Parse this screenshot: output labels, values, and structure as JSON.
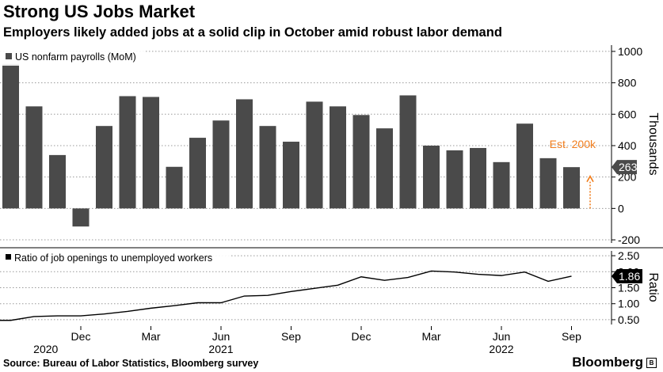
{
  "header": {
    "title": "Strong US Jobs Market",
    "subtitle": "Employers likely added jobs at a solid clip in October amid robust labor demand"
  },
  "footer": {
    "source": "Source: Bureau of Labor Statistics, Bloomberg survey",
    "brand": "Bloomberg",
    "brand_mark": "B"
  },
  "colors": {
    "bar": "#4a4a4a",
    "estimate": "#f07d1d",
    "gridline": "#999999",
    "badge": "#4a4a4a"
  },
  "chart_data": [
    {
      "type": "bar",
      "title": "US nonfarm payrolls (MoM)",
      "legend": "US nonfarm payrolls (MoM)",
      "ylabel": "Thousands",
      "ylim": [
        -220,
        1040
      ],
      "yticks": [
        -200,
        0,
        200,
        400,
        600,
        800,
        1000
      ],
      "categories": [
        "Sep 2020",
        "Oct 2020",
        "Nov 2020",
        "Dec 2020",
        "Jan 2021",
        "Feb 2021",
        "Mar 2021",
        "Apr 2021",
        "May 2021",
        "Jun 2021",
        "Jul 2021",
        "Aug 2021",
        "Sep 2021",
        "Oct 2021",
        "Nov 2021",
        "Dec 2021",
        "Jan 2022",
        "Feb 2022",
        "Mar 2022",
        "Apr 2022",
        "May 2022",
        "Jun 2022",
        "Jul 2022",
        "Aug 2022",
        "Sep 2022"
      ],
      "values": [
        920,
        650,
        340,
        -115,
        525,
        715,
        710,
        265,
        450,
        560,
        695,
        525,
        425,
        680,
        650,
        595,
        510,
        720,
        400,
        370,
        385,
        295,
        540,
        320,
        263
      ],
      "last_value_label": "263",
      "estimate": {
        "label": "Est. 200k",
        "value": 200
      }
    },
    {
      "type": "line",
      "title": "Ratio of job openings to unemployed workers",
      "legend": "Ratio of job openings to unemployed workers",
      "ylabel": "Ratio",
      "ylim": [
        0.35,
        2.65
      ],
      "yticks": [
        0.5,
        1.0,
        1.5,
        2.0,
        2.5
      ],
      "ytick_labels": [
        "0.50",
        "1.00",
        "1.50",
        "2.00",
        "2.50"
      ],
      "x": [
        "Sep 2020",
        "Oct 2020",
        "Nov 2020",
        "Dec 2020",
        "Jan 2021",
        "Feb 2021",
        "Mar 2021",
        "Apr 2021",
        "May 2021",
        "Jun 2021",
        "Jul 2021",
        "Aug 2021",
        "Sep 2021",
        "Oct 2021",
        "Nov 2021",
        "Dec 2021",
        "Jan 2022",
        "Feb 2022",
        "Mar 2022",
        "Apr 2022",
        "May 2022",
        "Jun 2022",
        "Jul 2022",
        "Aug 2022",
        "Sep 2022"
      ],
      "values": [
        0.48,
        0.6,
        0.62,
        0.62,
        0.68,
        0.76,
        0.86,
        0.94,
        1.03,
        1.03,
        1.24,
        1.26,
        1.38,
        1.48,
        1.58,
        1.84,
        1.73,
        1.82,
        2.02,
        1.99,
        1.92,
        1.88,
        1.99,
        1.7,
        1.86
      ],
      "last_value_label": "1.86"
    }
  ],
  "x_axis": {
    "tick_labels": [
      {
        "label": "Dec",
        "index": 3
      },
      {
        "label": "Mar",
        "index": 6
      },
      {
        "label": "Jun",
        "index": 9
      },
      {
        "label": "Sep",
        "index": 12
      },
      {
        "label": "Dec",
        "index": 15
      },
      {
        "label": "Mar",
        "index": 18
      },
      {
        "label": "Jun",
        "index": 21
      },
      {
        "label": "Sep",
        "index": 24
      }
    ],
    "year_labels": [
      {
        "label": "2020",
        "index": 1.5
      },
      {
        "label": "2021",
        "index": 9
      },
      {
        "label": "2022",
        "index": 21
      }
    ]
  }
}
